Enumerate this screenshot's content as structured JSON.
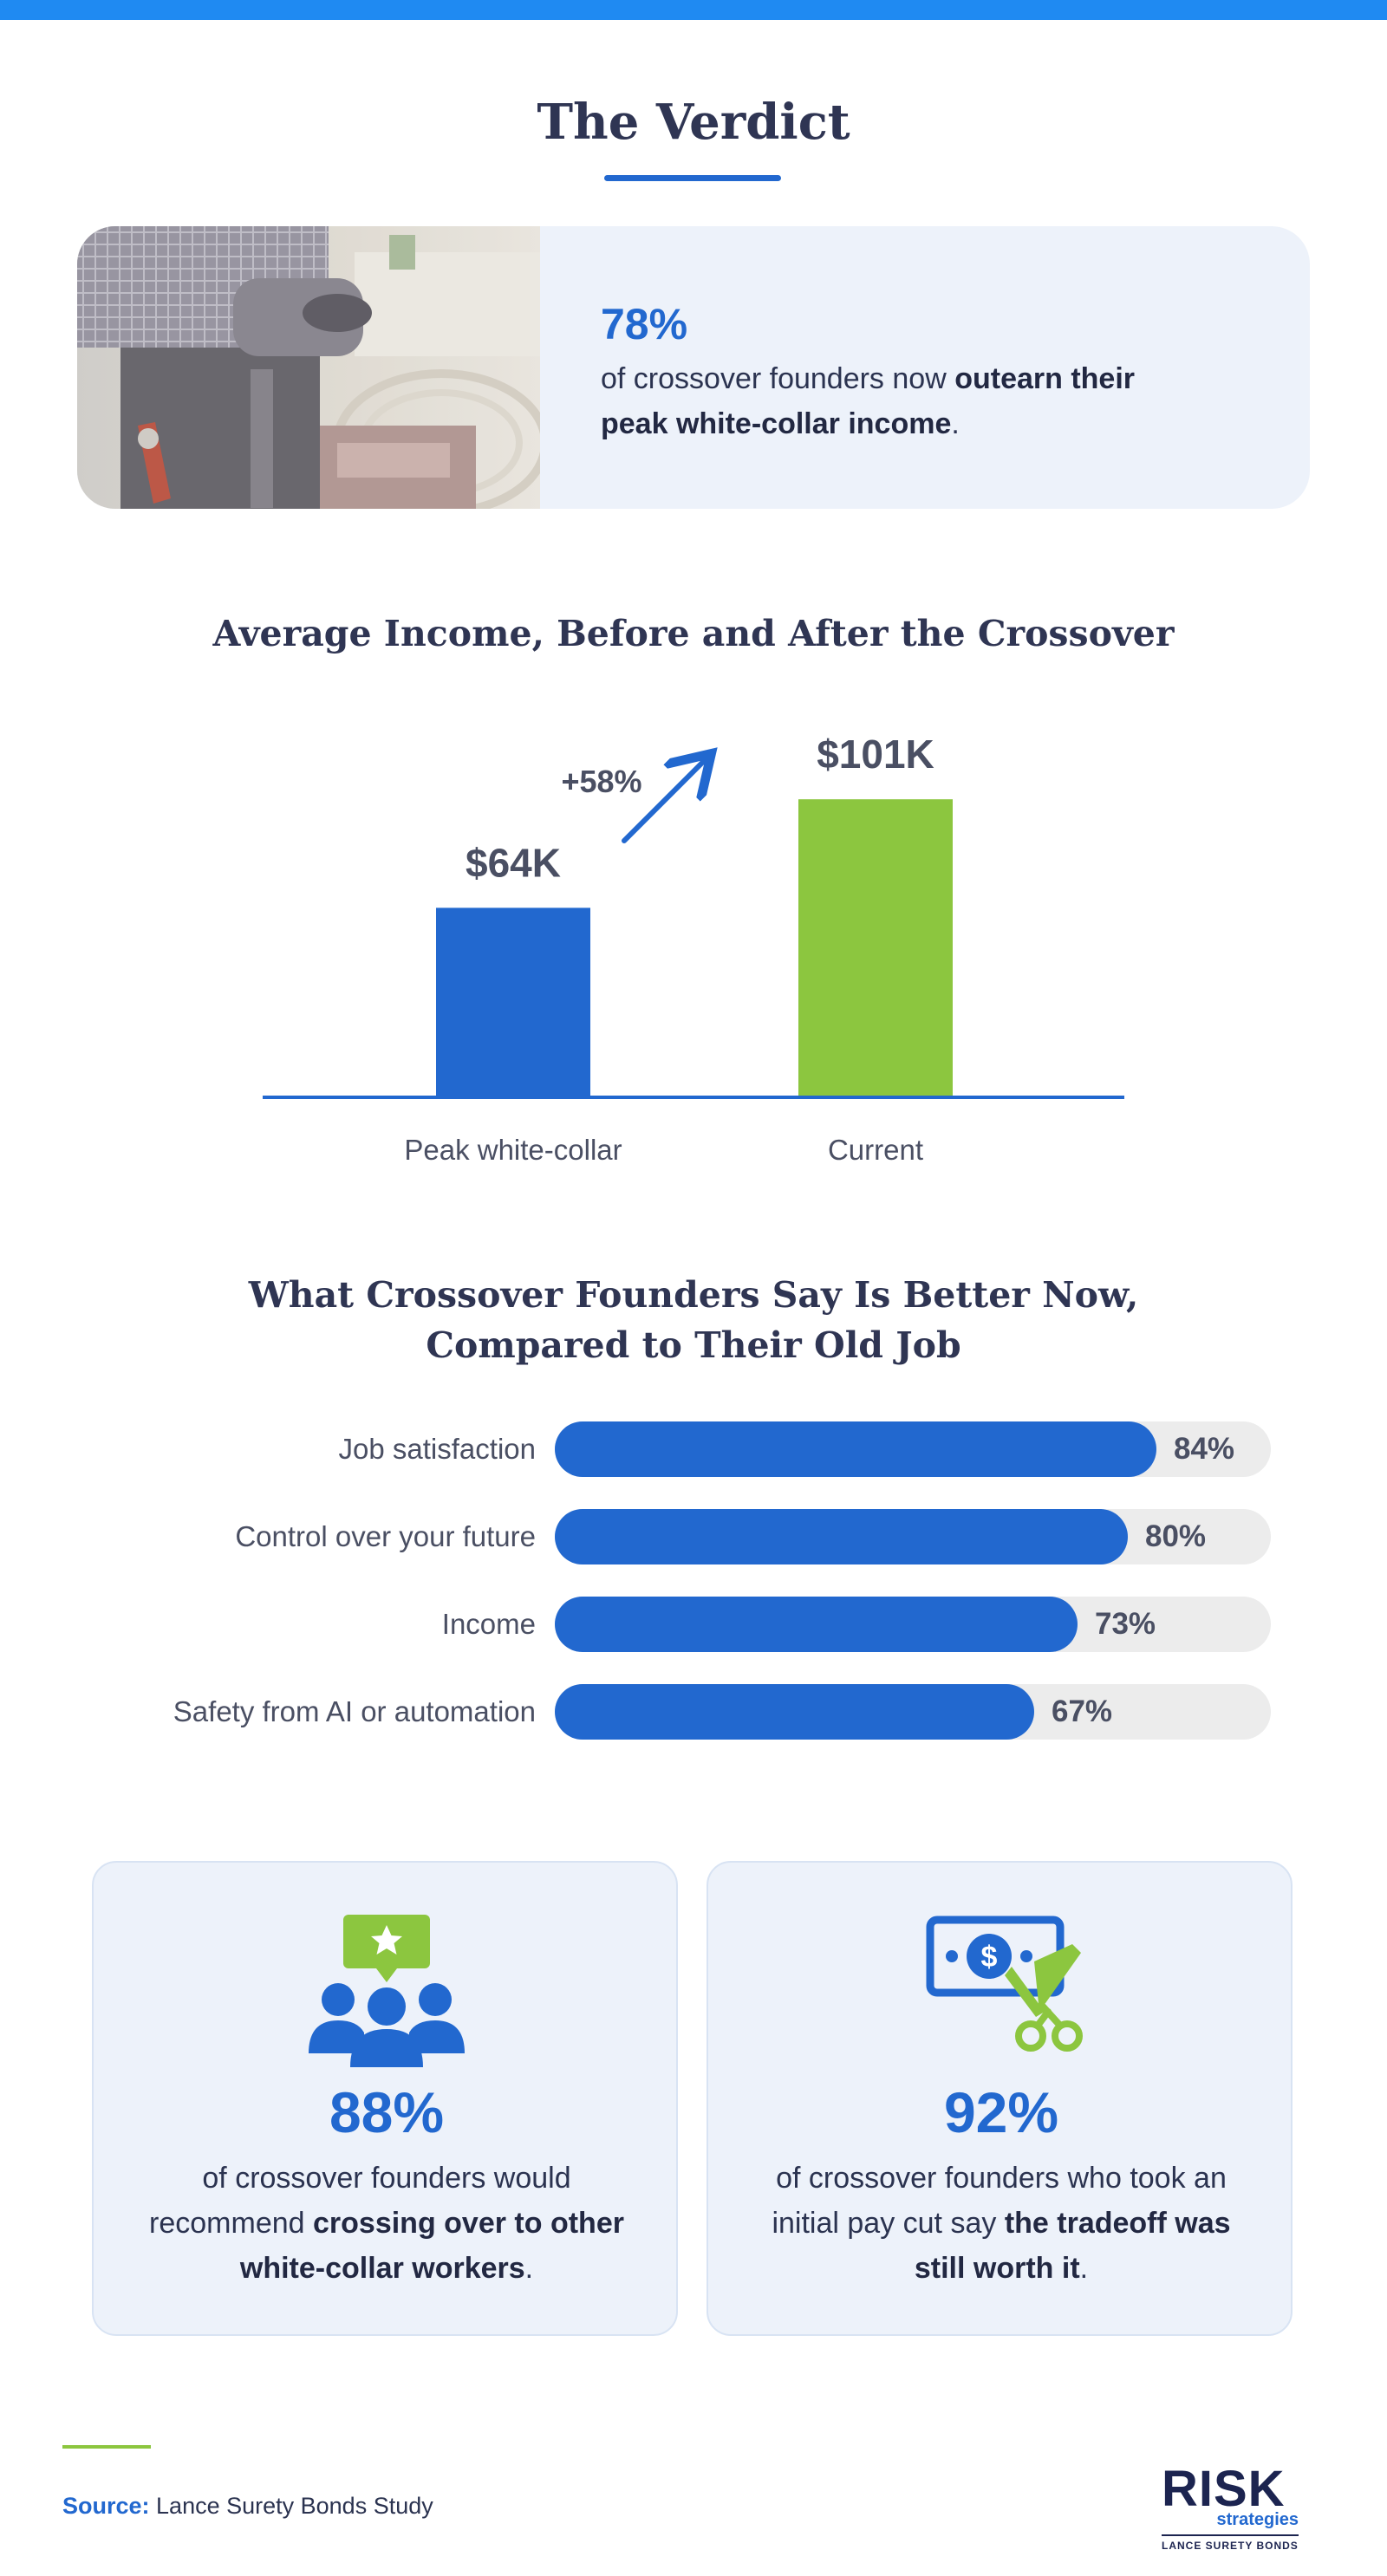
{
  "title": "The Verdict",
  "hero": {
    "stat": "78%",
    "text_before": "of crossover founders now ",
    "text_bold": "outearn their peak white-collar income",
    "text_after": "."
  },
  "colors": {
    "primary_blue": "#2268cf",
    "accent_green": "#8cc63f",
    "top_bar": "#1f8af2",
    "card_bg": "#edf2fa",
    "track_gray": "#ececec"
  },
  "chart_data": [
    {
      "type": "bar",
      "title": "Average Income, Before and After the Crossover",
      "categories": [
        "Peak white-collar",
        "Current"
      ],
      "values": [
        64,
        101
      ],
      "value_labels": [
        "$64K",
        "$101K"
      ],
      "bar_colors": [
        "#2268cf",
        "#8cc63f"
      ],
      "annotation": "+58%",
      "ylim": [
        0,
        130
      ],
      "grid": false,
      "legend": "none"
    },
    {
      "type": "bar",
      "orientation": "horizontal",
      "title_line1": "What Crossover Founders Say Is Better Now,",
      "title_line2": "Compared to Their Old Job",
      "categories": [
        "Job satisfaction",
        "Control over your future",
        "Income",
        "Safety from AI or automation"
      ],
      "values": [
        84,
        80,
        73,
        67
      ],
      "value_labels": [
        "84%",
        "80%",
        "73%",
        "67%"
      ],
      "xlim": [
        0,
        100
      ],
      "grid": false,
      "legend": "none"
    }
  ],
  "cards": [
    {
      "icon": "team-star-icon",
      "stat": "88%",
      "text_before": "of crossover founders would recommend ",
      "text_bold": "crossing over to other white-collar workers",
      "text_after": "."
    },
    {
      "icon": "money-cut-icon",
      "stat": "92%",
      "text_before": "of crossover founders who took an initial pay cut say ",
      "text_bold": "the tradeoff was still worth it",
      "text_after": "."
    }
  ],
  "source": {
    "label": "Source:",
    "text": " Lance Surety Bonds Study"
  },
  "logo": {
    "main": "RISK",
    "sub": "strategies",
    "tagline": "LANCE SURETY BONDS"
  }
}
